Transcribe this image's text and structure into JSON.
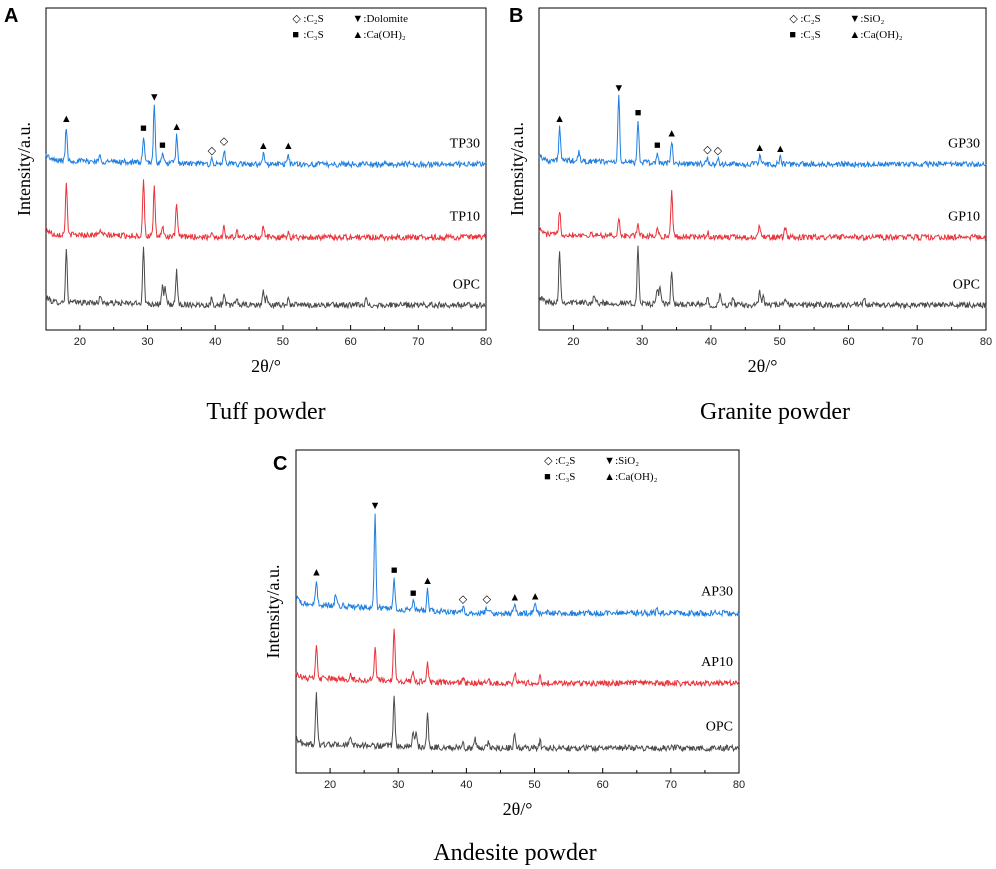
{
  "colors": {
    "opc": "#4a4a4a",
    "p10": "#e8333a",
    "p30": "#1f7fe0",
    "axis": "#000000",
    "marker": "#000000"
  },
  "chart_data": [
    {
      "type": "line",
      "panel": "A",
      "caption": "Tuff powder",
      "xlabel": "2θ/°",
      "ylabel": "Intensity/a.u.",
      "xlim": [
        15,
        80
      ],
      "xticks": [
        20,
        30,
        40,
        50,
        60,
        70,
        80
      ],
      "legend": [
        {
          "symbol": "◇",
          "label": ":C₂S"
        },
        {
          "symbol": "▼",
          "label": ":Dolomite"
        },
        {
          "symbol": "■",
          "label": ":C₃S"
        },
        {
          "symbol": "▲",
          "label": ":Ca(OH)₂"
        }
      ],
      "series": [
        {
          "name": "OPC",
          "color_key": "opc",
          "offset": 0,
          "tilt": 0.3,
          "peaks": [
            [
              18.0,
              5.0
            ],
            [
              23.0,
              0.8
            ],
            [
              29.4,
              5.5
            ],
            [
              32.2,
              1.6
            ],
            [
              32.6,
              1.6
            ],
            [
              34.3,
              3.2
            ],
            [
              39.5,
              0.7
            ],
            [
              41.3,
              1.0
            ],
            [
              43.2,
              0.7
            ],
            [
              47.1,
              1.4
            ],
            [
              47.6,
              0.9
            ],
            [
              50.8,
              0.7
            ],
            [
              62.3,
              0.5
            ]
          ]
        },
        {
          "name": "TP10",
          "color_key": "p10",
          "offset": 6.5,
          "tilt": 0.3,
          "peaks": [
            [
              18.0,
              5.0
            ],
            [
              23.0,
              0.6
            ],
            [
              29.4,
              5.5
            ],
            [
              31.0,
              4.6
            ],
            [
              32.2,
              1.0
            ],
            [
              34.3,
              3.2
            ],
            [
              39.5,
              0.6
            ],
            [
              41.3,
              1.0
            ],
            [
              43.2,
              0.6
            ],
            [
              47.1,
              1.2
            ],
            [
              50.8,
              0.6
            ]
          ]
        },
        {
          "name": "TP30",
          "color_key": "p30",
          "offset": 13.5,
          "tilt": 0.4,
          "peaks": [
            [
              18.0,
              3.2
            ],
            [
              23.0,
              0.6
            ],
            [
              29.4,
              2.5
            ],
            [
              31.0,
              5.5
            ],
            [
              32.2,
              0.9
            ],
            [
              34.3,
              2.7
            ],
            [
              39.5,
              0.5
            ],
            [
              41.3,
              1.4
            ],
            [
              47.1,
              1.0
            ],
            [
              50.8,
              1.0
            ]
          ]
        }
      ],
      "markers": [
        {
          "symbol": "▲",
          "x": 18.0,
          "series": "TP30"
        },
        {
          "symbol": "■",
          "x": 29.4,
          "series": "TP30"
        },
        {
          "symbol": "▼",
          "x": 31.0,
          "series": "TP30"
        },
        {
          "symbol": "■",
          "x": 32.2,
          "series": "TP30"
        },
        {
          "symbol": "▲",
          "x": 34.3,
          "series": "TP30"
        },
        {
          "symbol": "◇",
          "x": 39.5,
          "series": "TP30"
        },
        {
          "symbol": "◇",
          "x": 41.3,
          "series": "TP30"
        },
        {
          "symbol": "▲",
          "x": 47.1,
          "series": "TP30"
        },
        {
          "symbol": "▲",
          "x": 50.8,
          "series": "TP30"
        }
      ]
    },
    {
      "type": "line",
      "panel": "B",
      "caption": "Granite powder",
      "xlabel": "2θ/°",
      "ylabel": "Intensity/a.u.",
      "xlim": [
        15,
        80
      ],
      "xticks": [
        20,
        30,
        40,
        50,
        60,
        70,
        80
      ],
      "legend": [
        {
          "symbol": "◇",
          "label": ":C₂S"
        },
        {
          "symbol": "▼",
          "label": ":SiO₂"
        },
        {
          "symbol": "■",
          "label": ":C₃S"
        },
        {
          "symbol": "▲",
          "label": ":Ca(OH)₂"
        }
      ],
      "series": [
        {
          "name": "OPC",
          "color_key": "opc",
          "offset": 0,
          "tilt": 0.3,
          "peaks": [
            [
              18.0,
              5.0
            ],
            [
              23.0,
              0.8
            ],
            [
              29.4,
              5.5
            ],
            [
              32.2,
              1.6
            ],
            [
              32.6,
              1.6
            ],
            [
              34.3,
              3.2
            ],
            [
              39.5,
              0.7
            ],
            [
              41.3,
              1.0
            ],
            [
              43.2,
              0.7
            ],
            [
              47.1,
              1.4
            ],
            [
              47.6,
              0.9
            ],
            [
              50.8,
              0.7
            ],
            [
              62.3,
              0.5
            ]
          ]
        },
        {
          "name": "GP10",
          "color_key": "p10",
          "offset": 6.5,
          "tilt": 0.3,
          "peaks": [
            [
              18.0,
              2.4
            ],
            [
              26.6,
              1.6
            ],
            [
              29.4,
              1.2
            ],
            [
              32.2,
              0.9
            ],
            [
              34.3,
              4.3
            ],
            [
              39.5,
              0.5
            ],
            [
              47.1,
              1.2
            ],
            [
              50.8,
              0.9
            ]
          ]
        },
        {
          "name": "GP30",
          "color_key": "p30",
          "offset": 13.5,
          "tilt": 0.4,
          "peaks": [
            [
              18.0,
              3.2
            ],
            [
              20.8,
              0.8
            ],
            [
              26.6,
              6.3
            ],
            [
              29.4,
              4.0
            ],
            [
              32.2,
              0.9
            ],
            [
              34.3,
              2.1
            ],
            [
              39.5,
              0.6
            ],
            [
              41.0,
              0.5
            ],
            [
              47.1,
              0.8
            ],
            [
              50.1,
              0.7
            ]
          ]
        }
      ],
      "markers": [
        {
          "symbol": "▲",
          "x": 18.0,
          "series": "GP30"
        },
        {
          "symbol": "▼",
          "x": 26.6,
          "series": "GP30"
        },
        {
          "symbol": "■",
          "x": 29.4,
          "series": "GP30"
        },
        {
          "symbol": "■",
          "x": 32.2,
          "series": "GP30"
        },
        {
          "symbol": "▲",
          "x": 34.3,
          "series": "GP30"
        },
        {
          "symbol": "◇",
          "x": 39.5,
          "series": "GP30"
        },
        {
          "symbol": "◇",
          "x": 41.0,
          "series": "GP30"
        },
        {
          "symbol": "▲",
          "x": 47.1,
          "series": "GP30"
        },
        {
          "symbol": "▲",
          "x": 50.1,
          "series": "GP30"
        }
      ]
    },
    {
      "type": "line",
      "panel": "C",
      "caption": "Andesite powder",
      "xlabel": "2θ/°",
      "ylabel": "Intensity/a.u.",
      "xlim": [
        15,
        80
      ],
      "xticks": [
        20,
        30,
        40,
        50,
        60,
        70,
        80
      ],
      "legend": [
        {
          "symbol": "◇",
          "label": ":C₂S"
        },
        {
          "symbol": "▼",
          "label": ":SiO₂"
        },
        {
          "symbol": "■",
          "label": ":C₃S"
        },
        {
          "symbol": "▲",
          "label": ":Ca(OH)₂"
        }
      ],
      "series": [
        {
          "name": "OPC",
          "color_key": "opc",
          "offset": 0,
          "tilt": 0.4,
          "peaks": [
            [
              18.0,
              4.6
            ],
            [
              23.0,
              0.8
            ],
            [
              29.4,
              4.5
            ],
            [
              32.2,
              1.5
            ],
            [
              32.6,
              1.4
            ],
            [
              34.3,
              3.0
            ],
            [
              39.5,
              0.6
            ],
            [
              41.3,
              0.8
            ],
            [
              43.2,
              0.6
            ],
            [
              47.1,
              1.3
            ],
            [
              50.8,
              0.6
            ]
          ]
        },
        {
          "name": "AP10",
          "color_key": "p10",
          "offset": 6.0,
          "tilt": 0.5,
          "peaks": [
            [
              18.0,
              3.0
            ],
            [
              23.0,
              0.6
            ],
            [
              26.6,
              3.2
            ],
            [
              29.4,
              4.7
            ],
            [
              32.2,
              1.0
            ],
            [
              34.3,
              2.0
            ],
            [
              39.5,
              0.5
            ],
            [
              43.2,
              0.5
            ],
            [
              47.1,
              1.0
            ],
            [
              50.8,
              0.6
            ]
          ]
        },
        {
          "name": "AP30",
          "color_key": "p30",
          "offset": 12.5,
          "tilt": 0.9,
          "peaks": [
            [
              18.0,
              2.2
            ],
            [
              20.8,
              1.0
            ],
            [
              26.6,
              8.7
            ],
            [
              29.4,
              2.8
            ],
            [
              32.2,
              0.8
            ],
            [
              34.3,
              2.0
            ],
            [
              39.5,
              0.5
            ],
            [
              43.0,
              0.5
            ],
            [
              47.1,
              0.7
            ],
            [
              50.1,
              0.8
            ],
            [
              68.0,
              0.4
            ]
          ]
        }
      ],
      "markers": [
        {
          "symbol": "▲",
          "x": 18.0,
          "series": "AP30"
        },
        {
          "symbol": "▼",
          "x": 26.6,
          "series": "AP30"
        },
        {
          "symbol": "■",
          "x": 29.4,
          "series": "AP30"
        },
        {
          "symbol": "■",
          "x": 32.2,
          "series": "AP30"
        },
        {
          "symbol": "▲",
          "x": 34.3,
          "series": "AP30"
        },
        {
          "symbol": "◇",
          "x": 39.5,
          "series": "AP30"
        },
        {
          "symbol": "◇",
          "x": 43.0,
          "series": "AP30"
        },
        {
          "symbol": "▲",
          "x": 47.1,
          "series": "AP30"
        },
        {
          "symbol": "▲",
          "x": 50.1,
          "series": "AP30"
        }
      ]
    }
  ]
}
